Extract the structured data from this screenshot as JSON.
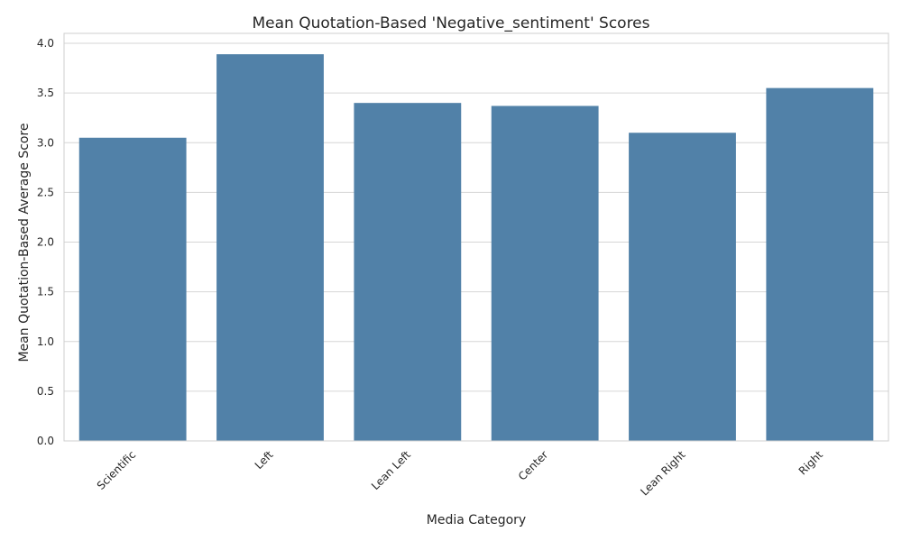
{
  "chart_data": {
    "type": "bar",
    "title": "Mean Quotation-Based 'Negative_sentiment' Scores",
    "xlabel": "Media Category",
    "ylabel": "Mean Quotation-Based Average Score",
    "categories": [
      "Scientific",
      "Left",
      "Lean Left",
      "Center",
      "Lean Right",
      "Right"
    ],
    "values": [
      3.05,
      3.89,
      3.4,
      3.37,
      3.1,
      3.55
    ],
    "ylim": [
      0,
      4.1
    ],
    "yticks": [
      "0.0",
      "0.5",
      "1.0",
      "1.5",
      "2.0",
      "2.5",
      "3.0",
      "3.5",
      "4.0"
    ],
    "bar_color": "#5181a8",
    "grid": "horizontal",
    "legend": "none"
  }
}
